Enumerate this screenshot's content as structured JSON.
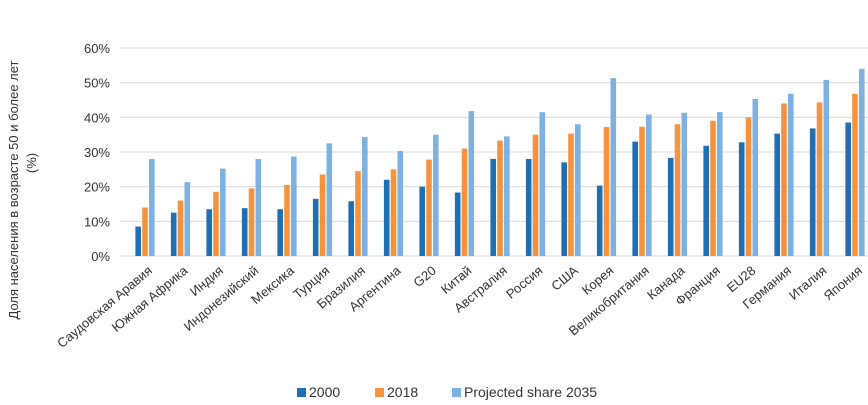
{
  "chart_data": {
    "type": "bar",
    "ylabel_line1": "Доля населения в возрасте 50 и более лет",
    "ylabel_line2": "(%)",
    "ylim": [
      0,
      60
    ],
    "yticks": [
      0,
      10,
      20,
      30,
      40,
      50,
      60
    ],
    "ytick_labels": [
      "0%",
      "10%",
      "20%",
      "30%",
      "40%",
      "50%",
      "60%"
    ],
    "categories": [
      "Саудовская Аравия",
      "Южная Африка",
      "Индия",
      "Индонезийский",
      "Мексика",
      "Турция",
      "Бразилия",
      "Аргентина",
      "G20",
      "Китай",
      "Австралия",
      "Россия",
      "США",
      "Корея",
      "Великобритания",
      "Канада",
      "Франция",
      "EU28",
      "Германия",
      "Италия",
      "Япония"
    ],
    "series": [
      {
        "name": "2000",
        "color": "#1F6FB2",
        "values": [
          8.5,
          12.5,
          13.5,
          13.8,
          13.5,
          16.5,
          15.8,
          22,
          20,
          18.3,
          28,
          28,
          27,
          20.3,
          33,
          28.3,
          31.8,
          32.8,
          35.3,
          36.8,
          38.5
        ]
      },
      {
        "name": "2018",
        "color": "#F5923E",
        "values": [
          14,
          16,
          18.5,
          19.5,
          20.5,
          23.5,
          24.5,
          25,
          27.8,
          31,
          33.3,
          35,
          35.3,
          37.2,
          37.3,
          38,
          39,
          40,
          44,
          44.3,
          46.8
        ]
      },
      {
        "name": "Projected share 2035",
        "color": "#7DB1E2",
        "values": [
          28,
          21.3,
          25.2,
          28,
          28.7,
          32.5,
          34.3,
          30.3,
          35,
          41.8,
          34.5,
          41.5,
          38,
          51.3,
          40.8,
          41.3,
          41.5,
          45.3,
          46.8,
          50.8,
          54
        ]
      }
    ],
    "legend_position": "bottom",
    "grid": "horizontal"
  }
}
